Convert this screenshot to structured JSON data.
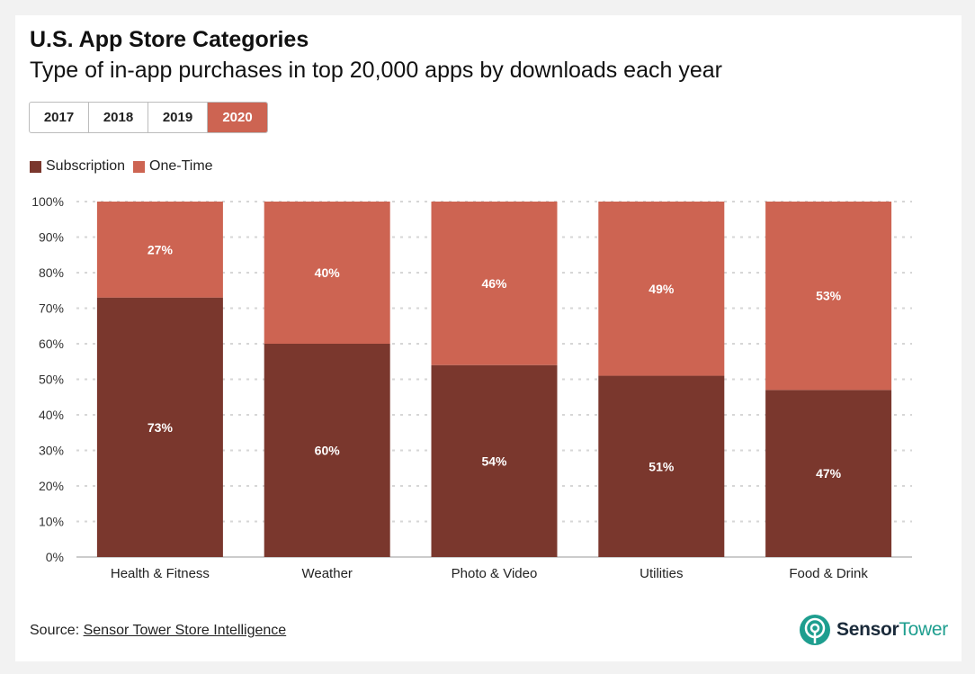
{
  "header": {
    "title": "U.S. App Store Categories",
    "subtitle": "Type of in-app purchases in top 20,000 apps by downloads each year"
  },
  "year_tabs": [
    {
      "label": "2017",
      "active": false
    },
    {
      "label": "2018",
      "active": false
    },
    {
      "label": "2019",
      "active": false
    },
    {
      "label": "2020",
      "active": true
    }
  ],
  "colors": {
    "subscription": "#7a372d",
    "one_time": "#cd6452",
    "accent": "#cd6452",
    "logo_teal": "#1e9e8f"
  },
  "legend": [
    {
      "label": "Subscription",
      "color": "#7a372d"
    },
    {
      "label": "One-Time",
      "color": "#cd6452"
    }
  ],
  "chart_data": {
    "type": "bar",
    "stacked": true,
    "categories": [
      "Health & Fitness",
      "Weather",
      "Photo & Video",
      "Utilities",
      "Food & Drink"
    ],
    "series": [
      {
        "name": "Subscription",
        "values": [
          73,
          60,
          54,
          51,
          47
        ],
        "labels": [
          "73%",
          "60%",
          "54%",
          "51%",
          "47%"
        ]
      },
      {
        "name": "One-Time",
        "values": [
          27,
          40,
          46,
          49,
          53
        ],
        "labels": [
          "27%",
          "40%",
          "46%",
          "49%",
          "53%"
        ]
      }
    ],
    "y_ticks": [
      "0%",
      "10%",
      "20%",
      "30%",
      "40%",
      "50%",
      "60%",
      "70%",
      "80%",
      "90%",
      "100%"
    ],
    "ylim": [
      0,
      100
    ],
    "grid": true,
    "legend_position": "top-left"
  },
  "footer": {
    "source_prefix": "Source:",
    "source_link": "Sensor Tower Store Intelligence",
    "logo_sensor": "Sensor",
    "logo_tower": "Tower"
  }
}
